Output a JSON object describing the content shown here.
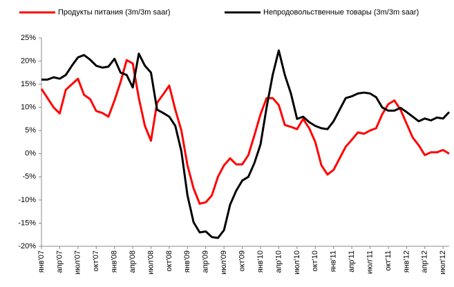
{
  "chart_data": {
    "type": "line",
    "categories": [
      "янв'07",
      null,
      null,
      "апр'07",
      null,
      null,
      "июл'07",
      null,
      null,
      "окт'07",
      null,
      null,
      "янв'08",
      null,
      null,
      "апр'08",
      null,
      null,
      "июл'08",
      null,
      null,
      "окт'08",
      null,
      null,
      "янв'09",
      null,
      null,
      "апр'09",
      null,
      null,
      "июл'09",
      null,
      null,
      "окт'09",
      null,
      null,
      "янв'10",
      null,
      null,
      "апр'10",
      null,
      null,
      "июл'10",
      null,
      null,
      "окт'10",
      null,
      null,
      "янв'11",
      null,
      null,
      "апр'11",
      null,
      null,
      "июл'11",
      null,
      null,
      "окт'11",
      null,
      null,
      "янв'12",
      null,
      null,
      "апр'12",
      null,
      null,
      "июл'12",
      null
    ],
    "series": [
      {
        "name": "Продукты питания (3m/3m saar)",
        "color": "#ff0000",
        "values": [
          14,
          12,
          10,
          8.7,
          13.8,
          15,
          16.2,
          12.7,
          11.8,
          9.2,
          8.8,
          8,
          11.5,
          15.5,
          20.2,
          19.5,
          12,
          6,
          2.8,
          11,
          12.8,
          14.7,
          9.5,
          5,
          -2.5,
          -7.5,
          -10.8,
          -10.5,
          -9,
          -5,
          -2.5,
          -1,
          -2.3,
          -2.3,
          -0.3,
          4,
          8.5,
          12,
          12,
          10.5,
          6.2,
          5.8,
          5.3,
          7.5,
          5.5,
          2.5,
          -2.5,
          -4.5,
          -3.5,
          -1,
          1.5,
          3,
          4.6,
          4.3,
          5,
          5.5,
          8.5,
          10.7,
          11.5,
          9.5,
          6.5,
          3.5,
          1.8,
          -0.3,
          0.3,
          0.3,
          0.8,
          0
        ]
      },
      {
        "name": "Непродовольственные товары (3m/3m saar)",
        "color": "#000000",
        "values": [
          16,
          16,
          16.5,
          16.2,
          17,
          19,
          20.8,
          21.3,
          20.3,
          19,
          18.6,
          18.8,
          20.5,
          17.5,
          17,
          14.3,
          21.6,
          19,
          17.5,
          9.5,
          8.8,
          8,
          6,
          0.5,
          -9,
          -14.8,
          -17,
          -16.8,
          -18,
          -18.2,
          -16.5,
          -11,
          -8,
          -5.8,
          -5,
          -2,
          2,
          10,
          17,
          22.3,
          17,
          13,
          7.5,
          8,
          6.8,
          6,
          5.5,
          5.3,
          7,
          9.5,
          12,
          12.4,
          13,
          13.2,
          13,
          12.2,
          10,
          9.3,
          9.3,
          9.9,
          9,
          8,
          7,
          7.6,
          7.2,
          7.8,
          7.6,
          9
        ]
      }
    ],
    "ylim": [
      -20,
      25
    ],
    "yticks": [
      {
        "value": -20,
        "label": "-20%"
      },
      {
        "value": -15,
        "label": "-15%"
      },
      {
        "value": -10,
        "label": "-10%"
      },
      {
        "value": -5,
        "label": "-5%"
      },
      {
        "value": 0,
        "label": "0%"
      },
      {
        "value": 5,
        "label": "5%"
      },
      {
        "value": 10,
        "label": "10%"
      },
      {
        "value": 15,
        "label": "15%"
      },
      {
        "value": 20,
        "label": "20%"
      },
      {
        "value": 25,
        "label": "25%"
      }
    ],
    "grid": false
  }
}
